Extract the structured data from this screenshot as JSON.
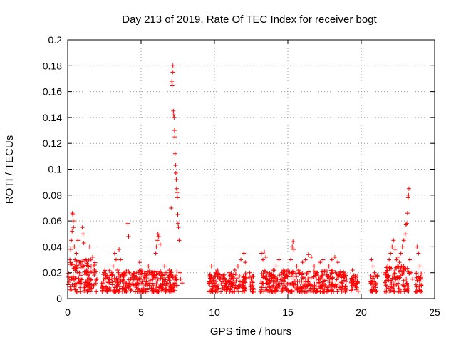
{
  "chart_data": {
    "type": "scatter",
    "title": "Day 213 of 2019, Rate Of TEC Index for receiver bogt",
    "xlabel": "GPS time / hours",
    "ylabel": "ROTI / TECUs",
    "xlim": [
      0,
      25
    ],
    "ylim": [
      0,
      0.2
    ],
    "xticks": [
      0,
      5,
      10,
      15,
      20,
      25
    ],
    "yticks": [
      0,
      0.02,
      0.04,
      0.06,
      0.08,
      0.1,
      0.12,
      0.14,
      0.16,
      0.18,
      0.2
    ],
    "ytick_labels": [
      "0",
      "0.02",
      "0.04",
      "0.06",
      "0.08",
      "0.1",
      "0.12",
      "0.14",
      "0.16",
      "0.18",
      "0.2"
    ],
    "grid": true,
    "marker": "+",
    "color": "#ff0000",
    "series": [
      {
        "name": "ROTI",
        "points": [
          [
            0.1,
            0.015
          ],
          [
            0.15,
            0.03
          ],
          [
            0.2,
            0.038
          ],
          [
            0.25,
            0.045
          ],
          [
            0.3,
            0.052
          ],
          [
            0.32,
            0.066
          ],
          [
            0.35,
            0.065
          ],
          [
            0.38,
            0.06
          ],
          [
            0.4,
            0.055
          ],
          [
            0.45,
            0.04
          ],
          [
            0.5,
            0.03
          ],
          [
            0.55,
            0.025
          ],
          [
            0.6,
            0.035
          ],
          [
            0.7,
            0.045
          ],
          [
            0.8,
            0.02
          ],
          [
            0.9,
            0.018
          ],
          [
            1.0,
            0.055
          ],
          [
            1.05,
            0.05
          ],
          [
            1.1,
            0.043
          ],
          [
            1.2,
            0.03
          ],
          [
            1.3,
            0.022
          ],
          [
            1.4,
            0.018
          ],
          [
            1.5,
            0.04
          ],
          [
            1.6,
            0.025
          ],
          [
            1.7,
            0.032
          ],
          [
            1.8,
            0.02
          ],
          [
            1.9,
            0.012
          ],
          [
            2.4,
            0.012
          ],
          [
            2.6,
            0.018
          ],
          [
            2.8,
            0.015
          ],
          [
            3.0,
            0.02
          ],
          [
            3.1,
            0.025
          ],
          [
            3.2,
            0.035
          ],
          [
            3.3,
            0.03
          ],
          [
            3.4,
            0.022
          ],
          [
            3.5,
            0.038
          ],
          [
            3.6,
            0.03
          ],
          [
            3.7,
            0.018
          ],
          [
            3.8,
            0.015
          ],
          [
            3.9,
            0.02
          ],
          [
            4.0,
            0.012
          ],
          [
            4.1,
            0.058
          ],
          [
            4.15,
            0.048
          ],
          [
            4.2,
            0.02
          ],
          [
            4.3,
            0.015
          ],
          [
            4.5,
            0.018
          ],
          [
            4.7,
            0.02
          ],
          [
            4.9,
            0.028
          ],
          [
            5.0,
            0.022
          ],
          [
            5.2,
            0.015
          ],
          [
            5.4,
            0.012
          ],
          [
            5.5,
            0.025
          ],
          [
            5.7,
            0.02
          ],
          [
            5.9,
            0.018
          ],
          [
            6.0,
            0.035
          ],
          [
            6.05,
            0.04
          ],
          [
            6.1,
            0.045
          ],
          [
            6.15,
            0.05
          ],
          [
            6.2,
            0.048
          ],
          [
            6.3,
            0.042
          ],
          [
            6.4,
            0.02
          ],
          [
            6.5,
            0.015
          ],
          [
            6.6,
            0.025
          ],
          [
            6.7,
            0.02
          ],
          [
            6.8,
            0.012
          ],
          [
            6.9,
            0.018
          ],
          [
            7.0,
            0.02
          ],
          [
            7.05,
            0.07
          ],
          [
            7.1,
            0.168
          ],
          [
            7.12,
            0.165
          ],
          [
            7.15,
            0.175
          ],
          [
            7.17,
            0.18
          ],
          [
            7.2,
            0.145
          ],
          [
            7.22,
            0.142
          ],
          [
            7.25,
            0.14
          ],
          [
            7.28,
            0.13
          ],
          [
            7.3,
            0.125
          ],
          [
            7.32,
            0.112
          ],
          [
            7.35,
            0.103
          ],
          [
            7.37,
            0.097
          ],
          [
            7.4,
            0.092
          ],
          [
            7.42,
            0.085
          ],
          [
            7.45,
            0.082
          ],
          [
            7.47,
            0.078
          ],
          [
            7.5,
            0.065
          ],
          [
            7.52,
            0.058
          ],
          [
            7.55,
            0.055
          ],
          [
            7.6,
            0.045
          ],
          [
            7.65,
            0.02
          ],
          [
            7.7,
            0.015
          ],
          [
            7.8,
            0.012
          ],
          [
            9.7,
            0.018
          ],
          [
            9.8,
            0.025
          ],
          [
            9.9,
            0.015
          ],
          [
            10.0,
            0.012
          ],
          [
            10.1,
            0.02
          ],
          [
            10.2,
            0.022
          ],
          [
            10.4,
            0.015
          ],
          [
            10.6,
            0.018
          ],
          [
            10.8,
            0.012
          ],
          [
            11.0,
            0.02
          ],
          [
            11.2,
            0.015
          ],
          [
            11.4,
            0.022
          ],
          [
            11.6,
            0.025
          ],
          [
            11.8,
            0.03
          ],
          [
            12.0,
            0.035
          ],
          [
            12.1,
            0.028
          ],
          [
            12.4,
            0.02
          ],
          [
            12.5,
            0.015
          ],
          [
            12.6,
            0.01
          ],
          [
            13.2,
            0.035
          ],
          [
            13.3,
            0.03
          ],
          [
            13.4,
            0.036
          ],
          [
            13.5,
            0.032
          ],
          [
            13.6,
            0.02
          ],
          [
            13.8,
            0.018
          ],
          [
            14.0,
            0.022
          ],
          [
            14.2,
            0.025
          ],
          [
            14.4,
            0.03
          ],
          [
            14.6,
            0.02
          ],
          [
            14.8,
            0.018
          ],
          [
            15.0,
            0.022
          ],
          [
            15.2,
            0.03
          ],
          [
            15.3,
            0.04
          ],
          [
            15.35,
            0.044
          ],
          [
            15.4,
            0.038
          ],
          [
            15.6,
            0.025
          ],
          [
            15.8,
            0.02
          ],
          [
            16.0,
            0.028
          ],
          [
            16.2,
            0.03
          ],
          [
            16.4,
            0.034
          ],
          [
            16.6,
            0.032
          ],
          [
            16.8,
            0.025
          ],
          [
            17.0,
            0.02
          ],
          [
            17.2,
            0.028
          ],
          [
            17.4,
            0.03
          ],
          [
            17.6,
            0.022
          ],
          [
            17.8,
            0.025
          ],
          [
            18.0,
            0.03
          ],
          [
            18.2,
            0.032
          ],
          [
            18.4,
            0.028
          ],
          [
            18.6,
            0.02
          ],
          [
            18.8,
            0.018
          ],
          [
            19.0,
            0.015
          ],
          [
            19.4,
            0.022
          ],
          [
            19.5,
            0.018
          ],
          [
            19.6,
            0.015
          ],
          [
            19.7,
            0.012
          ],
          [
            20.7,
            0.03
          ],
          [
            20.8,
            0.025
          ],
          [
            20.9,
            0.02
          ],
          [
            21.0,
            0.012
          ],
          [
            21.1,
            0.018
          ],
          [
            21.7,
            0.02
          ],
          [
            21.8,
            0.025
          ],
          [
            21.9,
            0.03
          ],
          [
            22.0,
            0.035
          ],
          [
            22.1,
            0.04
          ],
          [
            22.2,
            0.045
          ],
          [
            22.3,
            0.038
          ],
          [
            22.4,
            0.03
          ],
          [
            22.5,
            0.032
          ],
          [
            22.6,
            0.028
          ],
          [
            22.7,
            0.035
          ],
          [
            22.8,
            0.04
          ],
          [
            22.9,
            0.045
          ],
          [
            23.0,
            0.05
          ],
          [
            23.05,
            0.057
          ],
          [
            23.1,
            0.058
          ],
          [
            23.15,
            0.066
          ],
          [
            23.2,
            0.078
          ],
          [
            23.22,
            0.08
          ],
          [
            23.25,
            0.085
          ],
          [
            23.3,
            0.03
          ],
          [
            23.4,
            0.02
          ],
          [
            23.5,
            0.015
          ],
          [
            23.8,
            0.04
          ],
          [
            23.9,
            0.035
          ],
          [
            24.0,
            0.025
          ],
          [
            24.05,
            0.015
          ],
          [
            24.1,
            0.01
          ]
        ],
        "dense_bands": [
          {
            "x": [
              0.0,
              2.0
            ],
            "y": [
              0.005,
              0.03
            ]
          },
          {
            "x": [
              2.3,
              7.5
            ],
            "y": [
              0.005,
              0.022
            ]
          },
          {
            "x": [
              9.6,
              12.2
            ],
            "y": [
              0.005,
              0.02
            ]
          },
          {
            "x": [
              12.4,
              12.7
            ],
            "y": [
              0.005,
              0.018
            ]
          },
          {
            "x": [
              13.1,
              19.0
            ],
            "y": [
              0.005,
              0.022
            ]
          },
          {
            "x": [
              19.3,
              19.8
            ],
            "y": [
              0.005,
              0.018
            ]
          },
          {
            "x": [
              20.6,
              21.1
            ],
            "y": [
              0.005,
              0.02
            ]
          },
          {
            "x": [
              21.6,
              23.3
            ],
            "y": [
              0.005,
              0.025
            ]
          },
          {
            "x": [
              23.7,
              24.1
            ],
            "y": [
              0.005,
              0.02
            ]
          }
        ]
      }
    ]
  }
}
